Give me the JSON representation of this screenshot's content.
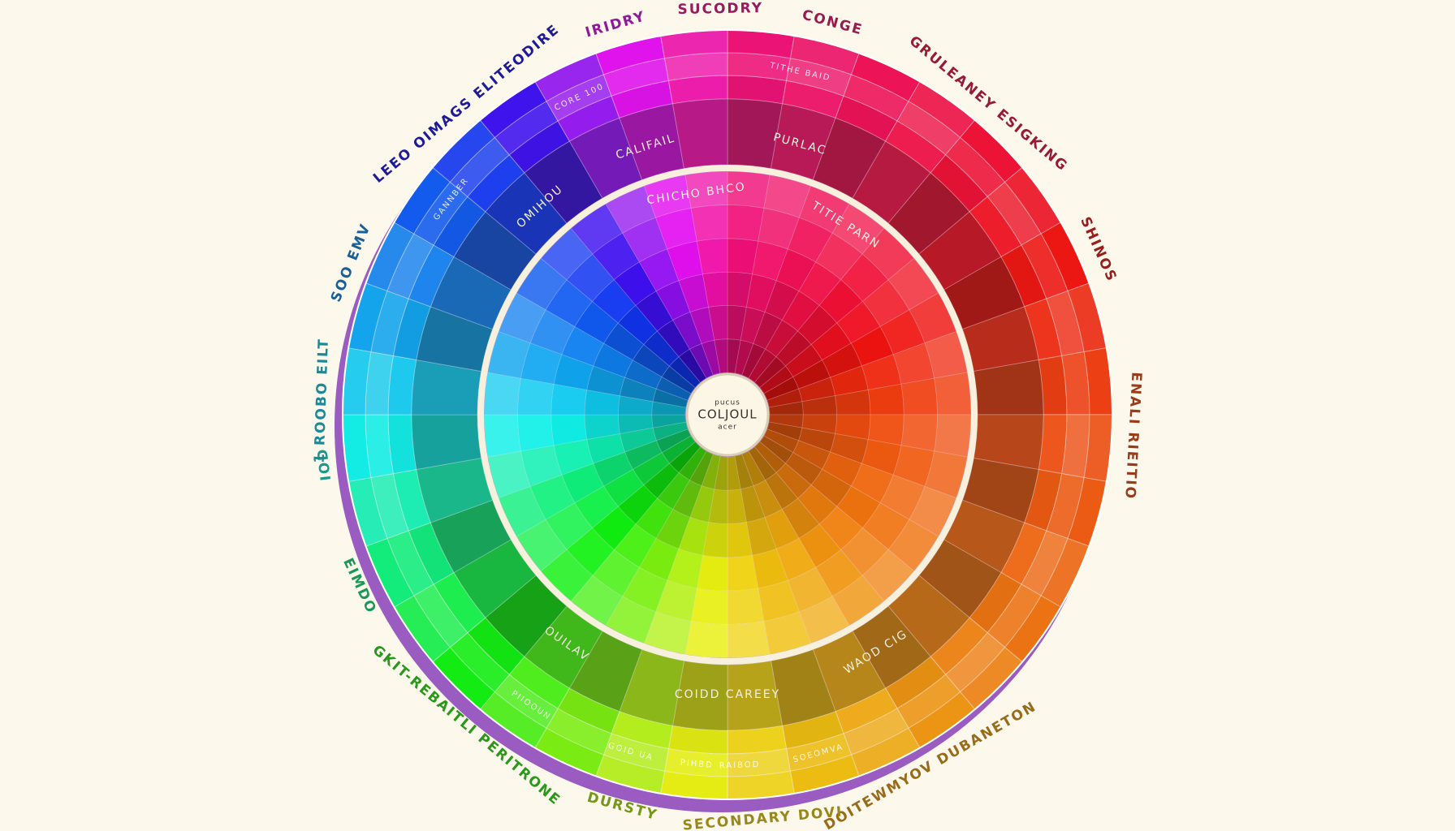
{
  "outer_labels": [
    "IRIDRY",
    "SUCODRY",
    "CONGE",
    "GRULEANEY ESIGKING",
    "SHINOS",
    "ENALI RIEITIO",
    "DOITEWMYOV DUBANETON",
    "SECONDARY DOVI",
    "DURSTY",
    "GKIT-REBAITLI PERITRONE",
    "EIMDO",
    "IOD",
    "1 ROOBO EILT",
    "SOO EMV",
    "LEEO OIMAGS ELITEODIRE"
  ],
  "ring_labels": [
    "CALIFAIL",
    "PURLAC",
    "OMIHOU",
    "COIDD CAREEY",
    "OUILAV",
    "WAOD CIG"
  ],
  "inner_labels": [
    "CHICHO BHCO",
    "TITIE PARN"
  ],
  "cell_labels": [
    "CORE 100",
    "GANNBER",
    "TITHE BAID",
    "RAIBOD",
    "SOEOMVA",
    "PIHBD",
    "GOID UA",
    "PIIOOUN"
  ],
  "center": {
    "lines": [
      "pucus",
      "COLJOUL",
      "acer"
    ]
  }
}
